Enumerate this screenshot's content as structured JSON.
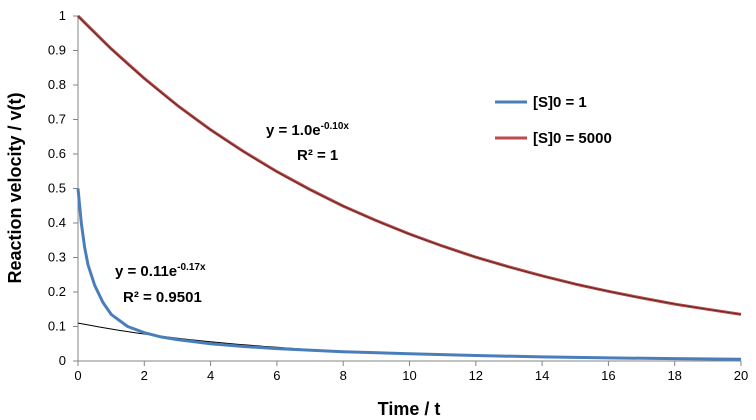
{
  "chart_data": {
    "type": "line",
    "xlabel": "Time / t",
    "ylabel": "Reaction velocity / v(t)",
    "xlim": [
      0,
      20
    ],
    "ylim": [
      0,
      1
    ],
    "x_ticks": [
      "0",
      "2",
      "4",
      "6",
      "8",
      "10",
      "12",
      "14",
      "16",
      "18",
      "20"
    ],
    "y_ticks": [
      "0",
      "0.1",
      "0.2",
      "0.3",
      "0.4",
      "0.5",
      "0.6",
      "0.7",
      "0.8",
      "0.9",
      "1"
    ],
    "grid": false,
    "legend_position": "right",
    "series": [
      {
        "name": "[S]0 = 1",
        "color": "#4a7ebb",
        "x": [
          0,
          0.1,
          0.2,
          0.3,
          0.5,
          0.75,
          1,
          1.5,
          2,
          2.5,
          3,
          4,
          5,
          6,
          8,
          10,
          12,
          14,
          16,
          18,
          20
        ],
        "y": [
          0.5,
          0.4,
          0.33,
          0.28,
          0.22,
          0.17,
          0.135,
          0.1,
          0.082,
          0.07,
          0.062,
          0.05,
          0.042,
          0.036,
          0.027,
          0.021,
          0.016,
          0.012,
          0.009,
          0.007,
          0.005
        ]
      },
      {
        "name": "[S]0 = 5000",
        "color": "#be4b48",
        "x": [
          0,
          1,
          2,
          3,
          4,
          5,
          6,
          7,
          8,
          9,
          10,
          11,
          12,
          13,
          14,
          15,
          16,
          17,
          18,
          19,
          20
        ],
        "y": [
          1.0,
          0.905,
          0.819,
          0.741,
          0.67,
          0.607,
          0.549,
          0.497,
          0.449,
          0.407,
          0.368,
          0.333,
          0.301,
          0.273,
          0.247,
          0.223,
          0.202,
          0.183,
          0.165,
          0.15,
          0.135
        ]
      }
    ],
    "trendlines": [
      {
        "target": "[S]0 = 5000",
        "type": "exponential",
        "a": 1.0,
        "b": -0.1,
        "color": "#000000",
        "equation_base": "y = 1.0e",
        "equation_exp": "-0.10x",
        "r2_label": "R² = 1"
      },
      {
        "target": "[S]0 = 1",
        "type": "exponential",
        "a": 0.11,
        "b": -0.17,
        "color": "#000000",
        "equation_base": "y = 0.11e",
        "equation_exp": "-0.17x",
        "r2_label": "R² = 0.9501"
      }
    ]
  }
}
